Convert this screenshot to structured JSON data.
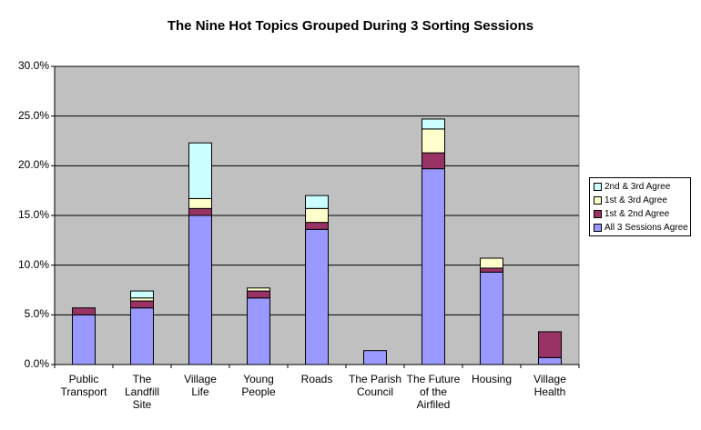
{
  "chart_data": {
    "type": "bar",
    "stacked": true,
    "title": "The Nine Hot Topics Grouped During 3 Sorting Sessions",
    "xlabel": "",
    "ylabel": "",
    "ylim": [
      0,
      0.3
    ],
    "yticks": [
      "0.0%",
      "5.0%",
      "10.0%",
      "15.0%",
      "20.0%",
      "25.0%",
      "30.0%"
    ],
    "grid": true,
    "legend_position": "right",
    "categories": [
      [
        "Public",
        "Transport"
      ],
      [
        "The",
        "Landfill",
        "Site"
      ],
      [
        "Village",
        "Life"
      ],
      [
        "Young",
        "People"
      ],
      [
        "Roads"
      ],
      [
        "The Parish",
        "Council"
      ],
      [
        "The Future",
        "of the",
        "Airfiled"
      ],
      [
        "Housing"
      ],
      [
        "Village",
        "Health"
      ]
    ],
    "series": [
      {
        "name": "All 3 Sessions Agree",
        "color": "#9999ff",
        "values": [
          0.05,
          0.057,
          0.15,
          0.067,
          0.136,
          0.014,
          0.197,
          0.093,
          0.007
        ]
      },
      {
        "name": "1st & 2nd Agree",
        "color": "#993366",
        "values": [
          0.007,
          0.007,
          0.007,
          0.007,
          0.007,
          0.0,
          0.016,
          0.004,
          0.026
        ]
      },
      {
        "name": "1st & 3rd Agree",
        "color": "#ffffcc",
        "values": [
          0.0,
          0.003,
          0.01,
          0.003,
          0.014,
          0.0,
          0.024,
          0.01,
          0.0
        ]
      },
      {
        "name": "2nd & 3rd Agree",
        "color": "#ccffff",
        "values": [
          0.0,
          0.007,
          0.056,
          0.0,
          0.013,
          0.0,
          0.01,
          0.0,
          0.0
        ]
      }
    ],
    "plot_background": "#c0c0c0"
  }
}
